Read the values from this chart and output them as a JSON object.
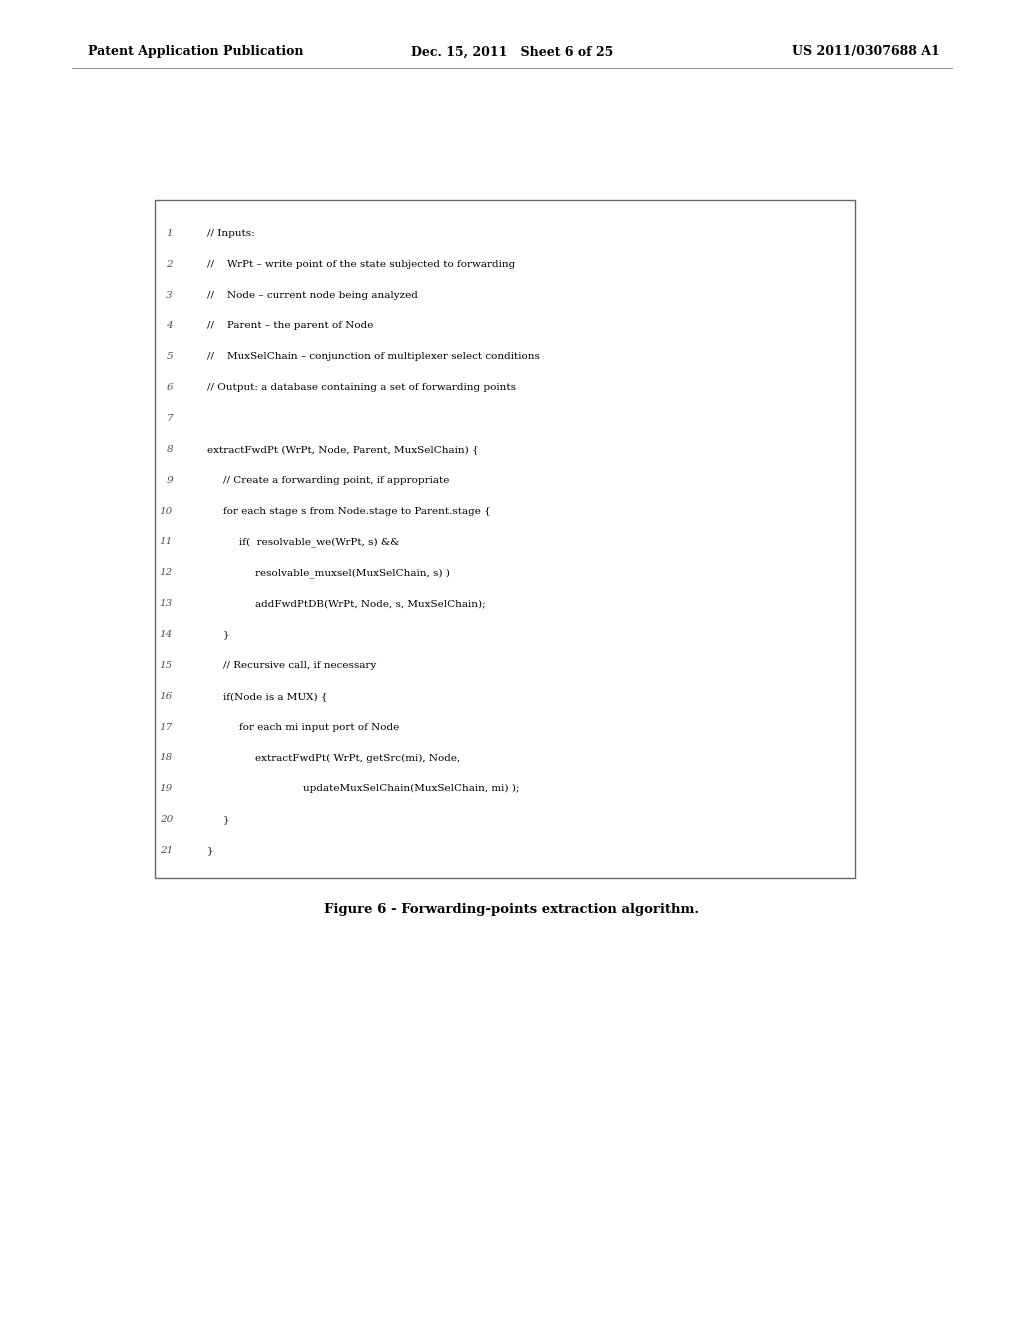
{
  "header_left": "Patent Application Publication",
  "header_center": "Dec. 15, 2011   Sheet 6 of 25",
  "header_right": "US 2011/0307688 A1",
  "figure_caption": "Figure 6 - Forwarding-points extraction algorithm.",
  "background_color": "#ffffff",
  "box_edge_color": "#666666",
  "text_color": "#000000",
  "header_color": "#000000",
  "font_size_header": 9.0,
  "font_size_code_num": 7.5,
  "font_size_code_text": 7.5,
  "font_size_caption": 9.5,
  "code_lines": [
    {
      "num": "1",
      "indent": 0,
      "text": "// Inputs:"
    },
    {
      "num": "2",
      "indent": 0,
      "text": "//    WrPt – write point of the state subjected to forwarding"
    },
    {
      "num": "3",
      "indent": 0,
      "text": "//    Node – current node being analyzed"
    },
    {
      "num": "4",
      "indent": 0,
      "text": "//    Parent – the parent of Node"
    },
    {
      "num": "5",
      "indent": 0,
      "text": "//    MuxSelChain – conjunction of multiplexer select conditions"
    },
    {
      "num": "6",
      "indent": 0,
      "text": "// Output: a database containing a set of forwarding points"
    },
    {
      "num": "7",
      "indent": 0,
      "text": ""
    },
    {
      "num": "8",
      "indent": 0,
      "text": "extractFwdPt (WrPt, Node, Parent, MuxSelChain) {"
    },
    {
      "num": "9",
      "indent": 1,
      "text": "// Create a forwarding point, if appropriate"
    },
    {
      "num": "10",
      "indent": 1,
      "text": "for each stage s from Node.stage to Parent.stage {"
    },
    {
      "num": "11",
      "indent": 2,
      "text": "if(  resolvable_we(WrPt, s) &&"
    },
    {
      "num": "12",
      "indent": 3,
      "text": "resolvable_muxsel(MuxSelChain, s) )"
    },
    {
      "num": "13",
      "indent": 3,
      "text": "addFwdPtDB(WrPt, Node, s, MuxSelChain);"
    },
    {
      "num": "14",
      "indent": 1,
      "text": "}"
    },
    {
      "num": "15",
      "indent": 1,
      "text": "// Recursive call, if necessary"
    },
    {
      "num": "16",
      "indent": 1,
      "text": "if(Node is a MUX) {"
    },
    {
      "num": "17",
      "indent": 2,
      "text": "for each mi input port of Node"
    },
    {
      "num": "18",
      "indent": 3,
      "text": "extractFwdPt( WrPt, getSrc(mi), Node,"
    },
    {
      "num": "19",
      "indent": 6,
      "text": "updateMuxSelChain(MuxSelChain, mi) );"
    },
    {
      "num": "20",
      "indent": 1,
      "text": "}"
    },
    {
      "num": "21",
      "indent": 0,
      "text": "}"
    }
  ]
}
